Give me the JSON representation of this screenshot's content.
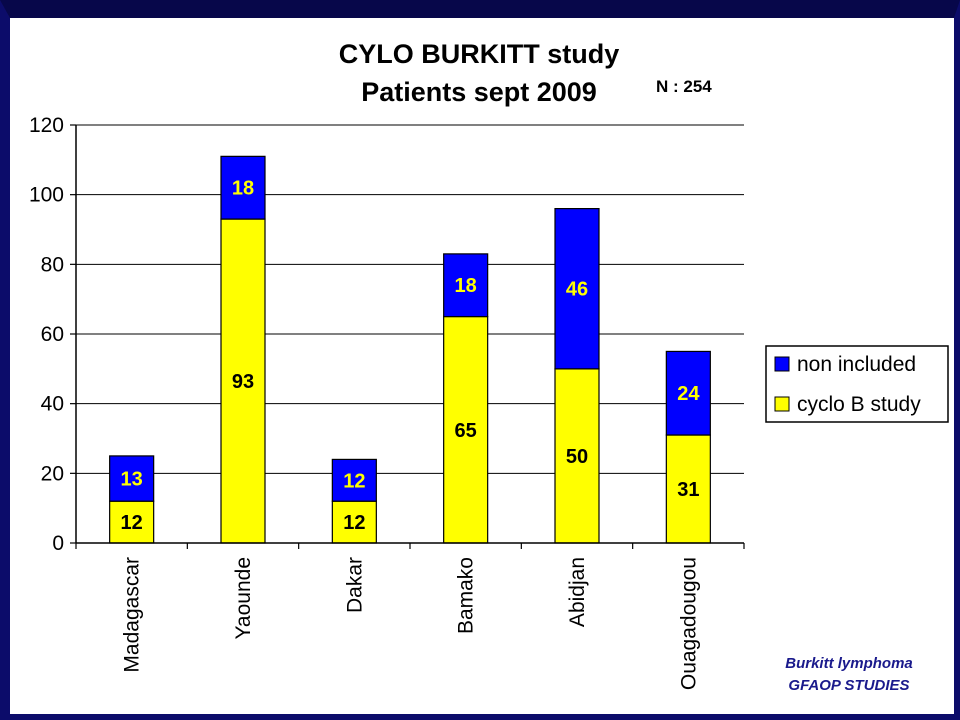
{
  "chart_data": {
    "type": "bar",
    "stacked": true,
    "title_lines": [
      "CYLO BURKITT study",
      "Patients  sept 2009"
    ],
    "annotation": "N : 254",
    "categories": [
      "Madagascar",
      "Yaounde",
      "Dakar",
      "Bamako",
      "Abidjan",
      "Ouagadougou"
    ],
    "series": [
      {
        "name": "cyclo B study",
        "color": "#ffff00",
        "values": [
          12,
          93,
          12,
          65,
          50,
          31
        ]
      },
      {
        "name": "non included",
        "color": "#0000ff",
        "values": [
          13,
          18,
          12,
          18,
          46,
          24
        ]
      }
    ],
    "ylim": [
      0,
      120
    ],
    "yticks": [
      0,
      20,
      40,
      60,
      80,
      100,
      120
    ],
    "grid": true,
    "legend_position": "right"
  },
  "footer": {
    "line1": "Burkitt lymphoma",
    "line2": "GFAOP STUDIES"
  }
}
